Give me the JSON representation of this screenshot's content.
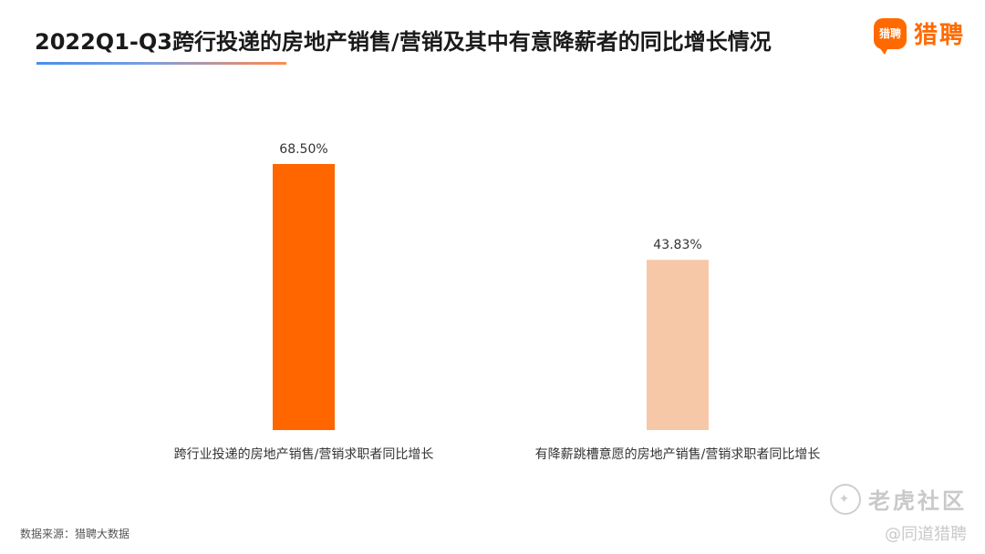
{
  "header": {
    "title": "2022Q1-Q3跨行投递的房地产销售/营销及其中有意降薪者的同比增长情况",
    "brand_badge": "猎聘",
    "brand_text": "猎聘"
  },
  "footer": {
    "source": "数据来源：猎聘大数据",
    "watermark": "老虎社区",
    "watermark_sub": "@同道猎聘"
  },
  "colors": {
    "accent": "#ff6a00",
    "bar1": "#ff6600",
    "bar2": "#f7c8a8"
  },
  "chart_data": {
    "type": "bar",
    "categories": [
      "跨行业投递的房地产销售/营销求职者同比增长",
      "有降薪跳槽意愿的房地产销售/营销求职者同比增长"
    ],
    "values": [
      68.5,
      43.83
    ],
    "value_labels": [
      "68.50%",
      "43.83%"
    ],
    "colors": [
      "#ff6600",
      "#f7c8a8"
    ],
    "title": "",
    "xlabel": "",
    "ylabel": "",
    "ylim": [
      0,
      80
    ],
    "grid": false,
    "legend": "none"
  }
}
